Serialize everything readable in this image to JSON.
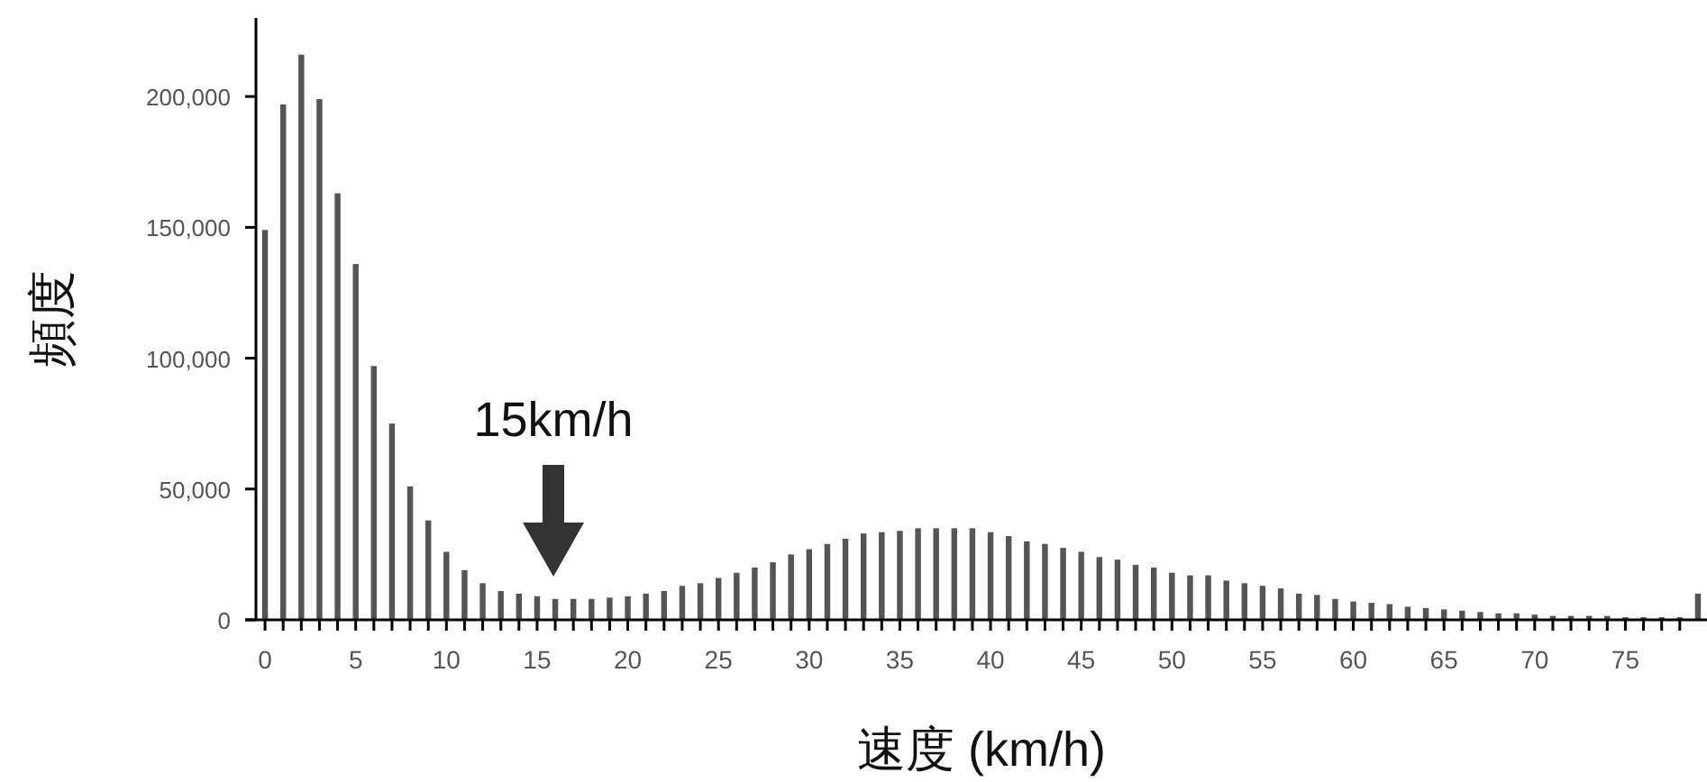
{
  "chart_data": {
    "type": "bar",
    "xlabel": "速度 (km/h)",
    "ylabel": "頻度",
    "color": "#555555",
    "x": [
      0,
      1,
      2,
      3,
      4,
      5,
      6,
      7,
      8,
      9,
      10,
      11,
      12,
      13,
      14,
      15,
      16,
      17,
      18,
      19,
      20,
      21,
      22,
      23,
      24,
      25,
      26,
      27,
      28,
      29,
      30,
      31,
      32,
      33,
      34,
      35,
      36,
      37,
      38,
      39,
      40,
      41,
      42,
      43,
      44,
      45,
      46,
      47,
      48,
      49,
      50,
      51,
      52,
      53,
      54,
      55,
      56,
      57,
      58,
      59,
      60,
      61,
      62,
      63,
      64,
      65,
      66,
      67,
      68,
      69,
      70,
      71,
      72,
      73,
      74,
      75,
      76,
      77,
      78,
      79
    ],
    "values": [
      149000,
      197000,
      216000,
      199000,
      163000,
      136000,
      97000,
      75000,
      51000,
      38000,
      26000,
      19000,
      14000,
      11000,
      10000,
      9000,
      8000,
      8000,
      8000,
      8500,
      9000,
      10000,
      11000,
      13000,
      14000,
      16000,
      18000,
      20000,
      22000,
      25000,
      27000,
      29000,
      31000,
      33000,
      33500,
      34000,
      35000,
      35000,
      35000,
      35000,
      33500,
      32000,
      30000,
      29000,
      27500,
      26000,
      24000,
      23000,
      21000,
      20000,
      18000,
      17000,
      17000,
      15000,
      14000,
      13000,
      12000,
      10000,
      9500,
      8000,
      7000,
      6500,
      6000,
      5000,
      4500,
      4000,
      3500,
      3000,
      2500,
      2500,
      2000,
      1500,
      1500,
      1500,
      1500,
      1000,
      1000,
      1000,
      1000,
      10000
    ],
    "xlim": [
      -0.5,
      79.5
    ],
    "ylim": [
      0,
      230000
    ],
    "xticks": [
      0,
      {
        "value": 1,
        "label": null
      },
      {
        "value": 2,
        "label": null
      },
      {
        "value": 3,
        "label": null
      },
      {
        "value": 4,
        "label": null
      },
      5,
      {
        "value": 6,
        "label": null
      },
      {
        "value": 7,
        "label": null
      },
      {
        "value": 8,
        "label": null
      },
      {
        "value": 9,
        "label": null
      },
      10,
      {
        "value": 11,
        "label": null
      },
      {
        "value": 12,
        "label": null
      },
      {
        "value": 13,
        "label": null
      },
      {
        "value": 14,
        "label": null
      },
      15,
      {
        "value": 16,
        "label": null
      },
      {
        "value": 17,
        "label": null
      },
      {
        "value": 18,
        "label": null
      },
      {
        "value": 19,
        "label": null
      },
      20,
      {
        "value": 21,
        "label": null
      },
      {
        "value": 22,
        "label": null
      },
      {
        "value": 23,
        "label": null
      },
      {
        "value": 24,
        "label": null
      },
      25,
      {
        "value": 26,
        "label": null
      },
      {
        "value": 27,
        "label": null
      },
      {
        "value": 28,
        "label": null
      },
      {
        "value": 29,
        "label": null
      },
      30,
      {
        "value": 31,
        "label": null
      },
      {
        "value": 32,
        "label": null
      },
      {
        "value": 33,
        "label": null
      },
      {
        "value": 34,
        "label": null
      },
      35,
      {
        "value": 36,
        "label": null
      },
      {
        "value": 37,
        "label": null
      },
      {
        "value": 38,
        "label": null
      },
      {
        "value": 39,
        "label": null
      },
      40,
      {
        "value": 41,
        "label": null
      },
      {
        "value": 42,
        "label": null
      },
      {
        "value": 43,
        "label": null
      },
      {
        "value": 44,
        "label": null
      },
      45,
      {
        "value": 46,
        "label": null
      },
      {
        "value": 47,
        "label": null
      },
      {
        "value": 48,
        "label": null
      },
      {
        "value": 49,
        "label": null
      },
      50,
      {
        "value": 51,
        "label": null
      },
      {
        "value": 52,
        "label": null
      },
      {
        "value": 53,
        "label": null
      },
      {
        "value": 54,
        "label": null
      },
      55,
      {
        "value": 56,
        "label": null
      },
      {
        "value": 57,
        "label": null
      },
      {
        "value": 58,
        "label": null
      },
      {
        "value": 59,
        "label": null
      },
      60,
      {
        "value": 61,
        "label": null
      },
      {
        "value": 62,
        "label": null
      },
      {
        "value": 63,
        "label": null
      },
      {
        "value": 64,
        "label": null
      },
      65,
      {
        "value": 66,
        "label": null
      },
      {
        "value": 67,
        "label": null
      },
      {
        "value": 68,
        "label": null
      },
      {
        "value": 69,
        "label": null
      },
      70,
      {
        "value": 71,
        "label": null
      },
      {
        "value": 72,
        "label": null
      },
      {
        "value": 73,
        "label": null
      },
      {
        "value": 74,
        "label": null
      },
      75,
      {
        "value": 76,
        "label": null
      },
      {
        "value": 77,
        "label": null
      },
      {
        "value": 78,
        "label": null
      }
    ],
    "yticks": [
      0,
      {
        "value": 50000,
        "label": "50,000"
      },
      {
        "value": 100000,
        "label": "100,000"
      },
      {
        "value": 150000,
        "label": "150,000"
      },
      {
        "value": 200000,
        "label": "200,000"
      }
    ],
    "annotations": [
      "15km/h"
    ],
    "grid": false
  }
}
